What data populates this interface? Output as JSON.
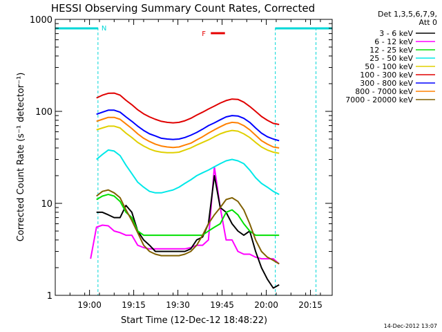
{
  "chart_data": {
    "type": "line",
    "title": "HESSI Observing Summary Count Rates, Corrected",
    "xlabel": "Start Time (12-Dec-12 18:48:22)",
    "ylabel": "Corrected Count Rate (s⁻¹ detector⁻¹)",
    "y_scale": "log",
    "ylim": [
      1,
      1000
    ],
    "xlim_minutes_from_start": [
      0,
      94
    ],
    "x_tick_labels": [
      "19:00",
      "19:15",
      "19:30",
      "19:45",
      "20:00",
      "20:15"
    ],
    "x_tick_minutes": [
      11.63,
      26.63,
      41.63,
      56.63,
      71.63,
      86.63
    ],
    "y_tick_labels": [
      "1",
      "10",
      "100",
      "1000"
    ],
    "y_tick_values": [
      1,
      10,
      100,
      1000
    ],
    "legend_header": [
      "Det 1,3,5,6,7,9,",
      "Att 0"
    ],
    "legend_location": "right",
    "timestamp": "14-Dec-2012 13:07",
    "annotations": {
      "night_label": "N",
      "flare_label": "F",
      "night_intervals": [
        [
          0,
          14.5
        ],
        [
          74.7,
          88.5
        ]
      ],
      "flare_interval": [
        52.8,
        57.6
      ],
      "flare_color": "#e60000",
      "night_color": "#00d7d7"
    },
    "x": [
      10,
      11,
      12,
      14,
      16,
      18,
      20,
      22,
      24,
      26,
      28,
      30,
      32,
      34,
      36,
      38,
      40,
      42,
      44,
      46,
      48,
      50,
      52,
      54,
      56,
      58,
      60,
      62,
      64,
      66,
      68,
      70,
      72,
      74,
      76,
      78
    ],
    "series": [
      {
        "name": "3 - 6 keV",
        "color": "#000000",
        "values": [
          null,
          null,
          null,
          8,
          8,
          7.5,
          7,
          7,
          9.5,
          8,
          5,
          4,
          3.5,
          3,
          3,
          3,
          3,
          3,
          3,
          3.2,
          4,
          4.3,
          6,
          20,
          9,
          8,
          6,
          5,
          4.5,
          5,
          3,
          2,
          1.5,
          1.2,
          1.3,
          null
        ]
      },
      {
        "name": "6 - 12 keV",
        "color": "#ff00ff",
        "values": [
          null,
          null,
          2.5,
          5.5,
          5.8,
          5.7,
          5,
          4.8,
          4.5,
          4.5,
          3.5,
          3.3,
          3.2,
          3.2,
          3.2,
          3.2,
          3.2,
          3.2,
          3.2,
          3.3,
          3.5,
          3.5,
          4,
          25,
          9,
          4,
          4,
          3,
          2.8,
          2.8,
          2.6,
          2.5,
          2.5,
          2.5,
          2.2,
          null
        ]
      },
      {
        "name": "12 - 25 keV",
        "color": "#00e000",
        "values": [
          null,
          null,
          null,
          11,
          12,
          12.5,
          12,
          10.5,
          8,
          7,
          5,
          4.5,
          4.5,
          4.5,
          4.5,
          4.5,
          4.5,
          4.5,
          4.5,
          4.5,
          4.5,
          4.5,
          5,
          5.5,
          6,
          8,
          8.5,
          7.5,
          6,
          5,
          4.5,
          4.5,
          4.5,
          4.5,
          4.5,
          null
        ]
      },
      {
        "name": "25 - 50 keV",
        "color": "#00e8e8",
        "values": [
          null,
          null,
          null,
          30,
          34,
          38,
          37,
          33,
          26,
          21,
          17,
          15,
          13.5,
          13,
          13,
          13.5,
          14,
          15,
          16.5,
          18,
          20,
          21.5,
          23,
          25,
          27,
          29,
          30,
          29,
          27,
          23,
          19,
          16.5,
          15,
          13.5,
          12.5,
          null
        ]
      },
      {
        "name": "50 - 100 keV",
        "color": "#e0d000",
        "values": [
          null,
          null,
          null,
          63,
          66,
          69,
          69,
          66,
          58,
          52,
          46,
          42,
          39,
          37,
          36,
          35.5,
          35.5,
          36,
          38,
          40,
          43,
          46,
          49,
          53,
          57,
          60,
          62,
          61,
          57,
          52,
          46,
          41,
          38,
          36,
          35,
          null
        ]
      },
      {
        "name": "100 - 300 keV",
        "color": "#e00000",
        "values": [
          null,
          null,
          null,
          140,
          150,
          157,
          158,
          150,
          132,
          118,
          104,
          94,
          87,
          82,
          78,
          76,
          75,
          76,
          79,
          84,
          91,
          98,
          106,
          114,
          123,
          131,
          136,
          135,
          126,
          113,
          100,
          88,
          80,
          74,
          72,
          null
        ]
      },
      {
        "name": "300 - 800 keV",
        "color": "#0000ff",
        "values": [
          null,
          null,
          null,
          93,
          98,
          103,
          103,
          98,
          87,
          78,
          69,
          62,
          57,
          54,
          51,
          50,
          49.5,
          50,
          52,
          55,
          59,
          64,
          70,
          75,
          81,
          87,
          90,
          89,
          84,
          76,
          66,
          58,
          53,
          50,
          48,
          null
        ]
      },
      {
        "name": "800 - 7000 keV",
        "color": "#ff8000",
        "values": [
          null,
          null,
          null,
          78,
          82,
          86,
          86,
          82,
          73,
          65,
          57,
          51,
          47,
          44,
          42,
          41,
          40.5,
          41,
          43,
          45,
          49,
          53,
          58,
          63,
          68,
          73,
          76,
          75,
          70,
          63,
          55,
          48,
          44,
          41,
          40,
          null
        ]
      },
      {
        "name": "7000 - 20000 keV",
        "color": "#806000",
        "values": [
          null,
          null,
          null,
          12,
          13.5,
          14,
          13,
          11.5,
          8.5,
          6.5,
          4.8,
          3.5,
          3,
          2.8,
          2.7,
          2.7,
          2.7,
          2.7,
          2.8,
          3,
          3.5,
          4.5,
          6,
          7.5,
          9,
          11,
          11.5,
          10.5,
          8.5,
          6,
          4,
          3,
          2.6,
          2.4,
          2.2,
          null
        ]
      }
    ]
  }
}
